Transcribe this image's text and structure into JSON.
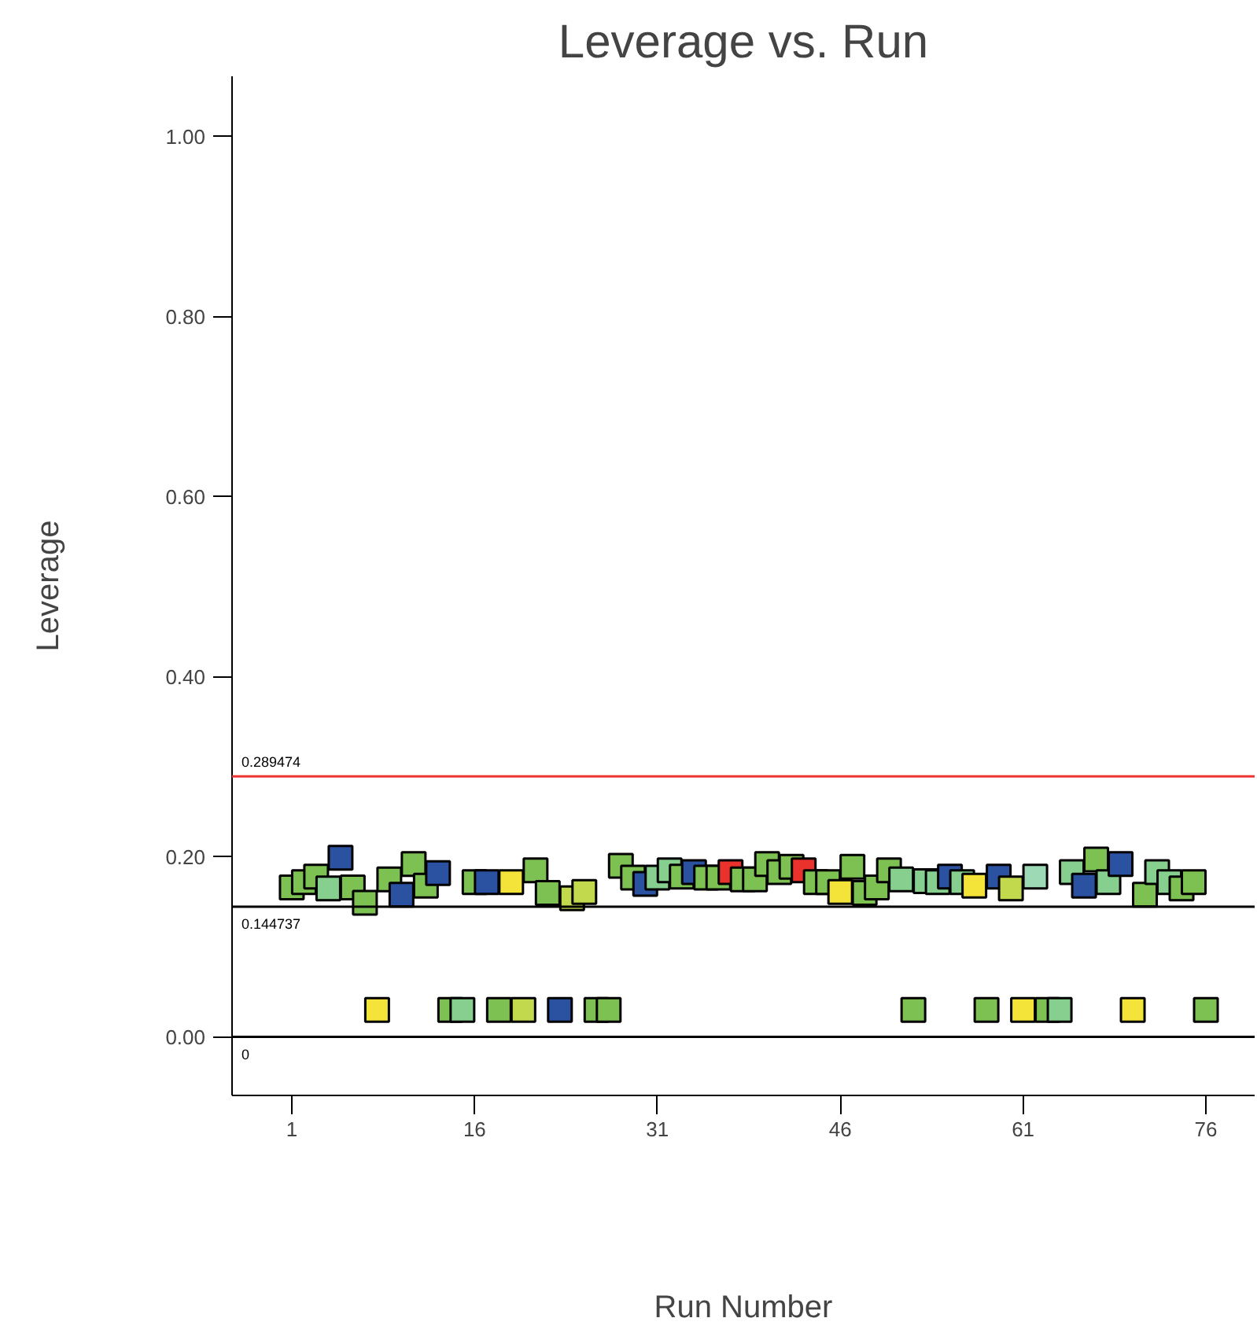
{
  "chart_data": {
    "type": "scatter",
    "title": "Leverage vs. Run",
    "xlabel": "Run Number",
    "ylabel": "Leverage",
    "x": [
      1,
      2,
      3,
      4,
      5,
      6,
      7,
      8,
      9,
      10,
      11,
      12,
      13,
      14,
      15,
      16,
      17,
      18,
      19,
      20,
      21,
      22,
      23,
      24,
      25,
      26,
      27,
      28,
      29,
      30,
      31,
      32,
      33,
      34,
      35,
      36,
      37,
      38,
      39,
      40,
      41,
      42,
      43,
      44,
      45,
      46,
      47,
      48,
      49,
      50,
      51,
      52,
      53,
      54,
      55,
      56,
      57,
      58,
      59,
      60,
      61,
      62,
      63,
      64,
      65,
      66,
      67,
      68,
      69,
      70,
      71,
      72,
      73,
      74,
      75,
      76
    ],
    "values": [
      0.166,
      0.172,
      0.178,
      0.165,
      0.199,
      0.166,
      0.149,
      0.03,
      0.175,
      0.158,
      0.192,
      0.168,
      0.182,
      0.03,
      0.03,
      0.172,
      0.172,
      0.03,
      0.172,
      0.03,
      0.185,
      0.16,
      0.03,
      0.154,
      0.161,
      0.03,
      0.03,
      0.19,
      0.177,
      0.17,
      0.177,
      0.185,
      0.178,
      0.183,
      0.177,
      0.177,
      0.183,
      0.175,
      0.175,
      0.192,
      0.183,
      0.189,
      0.185,
      0.172,
      0.172,
      0.161,
      0.189,
      0.16,
      0.166,
      0.185,
      0.175,
      0.03,
      0.173,
      0.172,
      0.178,
      0.172,
      0.168,
      0.03,
      0.178,
      0.165,
      0.03,
      0.178,
      0.03,
      0.03,
      0.183,
      0.168,
      0.197,
      0.172,
      0.192,
      0.03,
      0.158,
      0.183,
      0.172,
      0.165,
      0.172,
      0.03
    ],
    "colors": [
      "#7cc152",
      "#7cc152",
      "#7cc152",
      "#86cf8e",
      "#2a52a0",
      "#7cc152",
      "#7cc152",
      "#f4e43a",
      "#7cc152",
      "#2a52a0",
      "#7cc152",
      "#7cc152",
      "#2a52a0",
      "#7cc152",
      "#86cf8e",
      "#7cc152",
      "#2a52a0",
      "#7cc152",
      "#f4e43a",
      "#c2d94e",
      "#7cc152",
      "#7cc152",
      "#2a52a0",
      "#c2d94e",
      "#c2d94e",
      "#7cc152",
      "#7cc152",
      "#7cc152",
      "#7cc152",
      "#2a52a0",
      "#86cf8e",
      "#86cf8e",
      "#7cc152",
      "#2a52a0",
      "#7cc152",
      "#7cc152",
      "#e8322b",
      "#7cc152",
      "#7cc152",
      "#7cc152",
      "#7cc152",
      "#7cc152",
      "#e8322b",
      "#7cc152",
      "#7cc152",
      "#f4e43a",
      "#7cc152",
      "#7cc152",
      "#7cc152",
      "#7cc152",
      "#86cf8e",
      "#7cc152",
      "#86cf8e",
      "#86cf8e",
      "#2a52a0",
      "#86cf8e",
      "#f4e43a",
      "#7cc152",
      "#2a52a0",
      "#c2d94e",
      "#f4e43a",
      "#9ed9b6",
      "#7cc152",
      "#86cf8e",
      "#86cf8e",
      "#2a52a0",
      "#7cc152",
      "#86cf8e",
      "#2a52a0",
      "#f4e43a",
      "#7cc152",
      "#86cf8e",
      "#86cf8e",
      "#7cc152",
      "#7cc152",
      "#7cc152"
    ],
    "marker": "square",
    "grid": false,
    "xlim": [
      -3.9,
      80
    ],
    "xticks": [
      1,
      16,
      31,
      46,
      61,
      76
    ],
    "ylim": [
      -0.065,
      1.067
    ],
    "yticks": [
      {
        "value": 0,
        "label": "0.00"
      },
      {
        "value": 0.2,
        "label": "0.20"
      },
      {
        "value": 0.4,
        "label": "0.40"
      },
      {
        "value": 0.6,
        "label": "0.60"
      },
      {
        "value": 0.8,
        "label": "0.80"
      },
      {
        "value": 1,
        "label": "1.00"
      }
    ],
    "ref_lines": [
      {
        "axis": "y",
        "value": 0.289474,
        "label": "0.289474",
        "color": "#ee3333"
      },
      {
        "axis": "y",
        "value": 0.144737,
        "label": "0.144737",
        "color": "#000000"
      },
      {
        "axis": "y",
        "value": 0,
        "label": "0",
        "color": "#000000"
      }
    ]
  }
}
